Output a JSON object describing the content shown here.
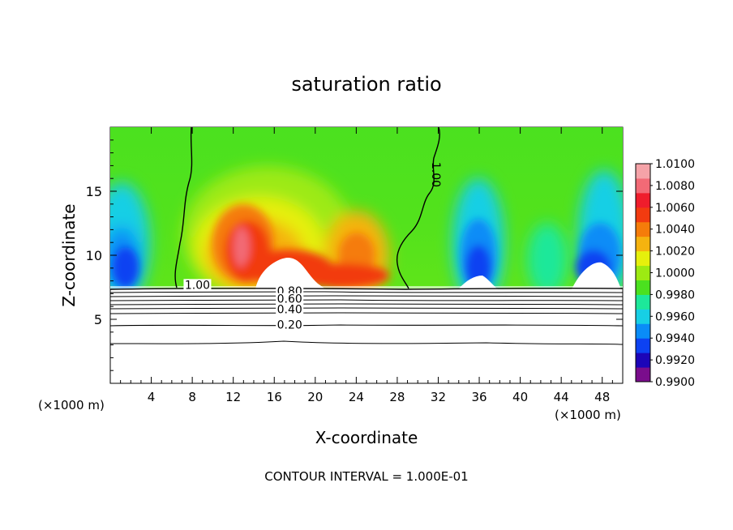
{
  "chart_data": {
    "type": "heatmap",
    "title": "saturation ratio",
    "xlabel": "X-coordinate",
    "ylabel": "Z-coordinate",
    "x_unit_left": "(×1000 m)",
    "x_unit_right": "(×1000 m)",
    "xlim": [
      0,
      50
    ],
    "ylim": [
      0,
      20
    ],
    "x_ticks": [
      4,
      8,
      12,
      16,
      20,
      24,
      28,
      32,
      36,
      40,
      44,
      48
    ],
    "y_ticks": [
      5,
      10,
      15
    ],
    "footer": "CONTOUR INTERVAL = 1.000E-01",
    "colorbar": {
      "levels": [
        "1.0100",
        "1.0080",
        "1.0060",
        "1.0040",
        "1.0020",
        "1.0000",
        "0.9980",
        "0.9960",
        "0.9940",
        "0.9920",
        "0.9900"
      ],
      "colors": [
        "#7a0d8c",
        "#1c05b8",
        "#0d42f2",
        "#0a8cf7",
        "#17cfe5",
        "#1de89a",
        "#4be11f",
        "#9dea12",
        "#e6f00c",
        "#f5b30f",
        "#f57c0a",
        "#f23b10",
        "#ef1d2c",
        "#f26a76",
        "#f5a3a8"
      ]
    },
    "contour_labels": [
      {
        "text": "1.00",
        "x": 8.5,
        "z": 7.7
      },
      {
        "text": "1.00",
        "x": 31.8,
        "z": 16.3
      },
      {
        "text": "0.80",
        "x": 17.5,
        "z": 7.2
      },
      {
        "text": "0.60",
        "x": 17.5,
        "z": 6.6
      },
      {
        "text": "0.40",
        "x": 17.5,
        "z": 5.8
      },
      {
        "text": "0.20",
        "x": 17.5,
        "z": 4.6
      }
    ]
  }
}
